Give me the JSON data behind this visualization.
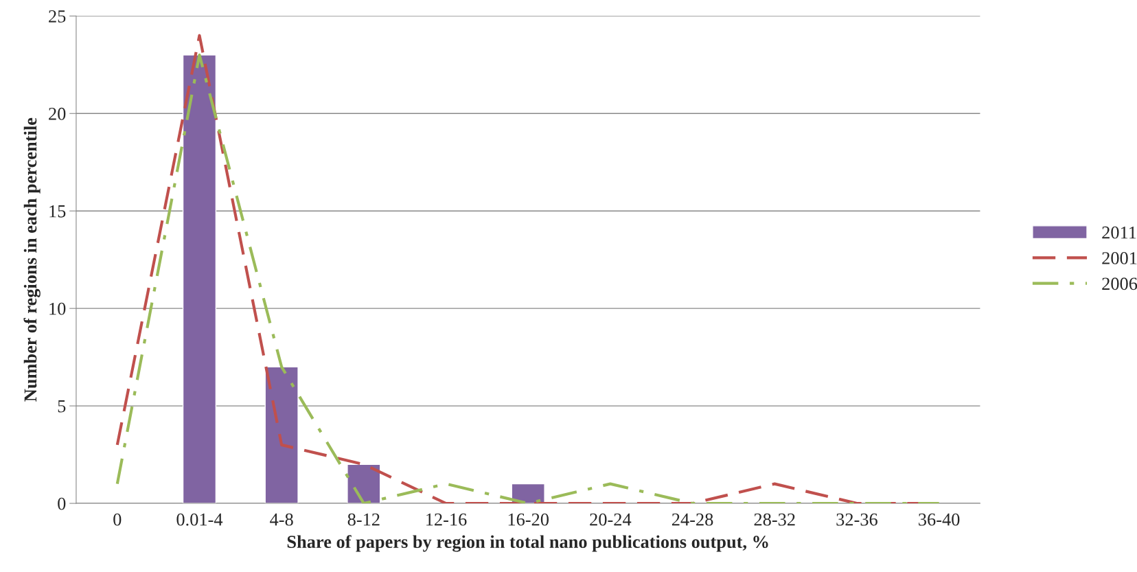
{
  "chart_data": {
    "type": "bar",
    "xlabel": "Share of papers by region in total nano publications output, %",
    "ylabel": "Number of regions in each percentile",
    "categories": [
      "0",
      "0.01-4",
      "4-8",
      "8-12",
      "12-16",
      "16-20",
      "20-24",
      "24-28",
      "28-32",
      "32-36",
      "36-40"
    ],
    "series": [
      {
        "name": "2011",
        "color": "#8064a2",
        "values": [
          0,
          23,
          7,
          2,
          0,
          1,
          0,
          0,
          0,
          0,
          0
        ]
      },
      {
        "name": "2001",
        "type": "line",
        "line_style": "dashed",
        "color": "#c0504d",
        "values": [
          3,
          24,
          3,
          2,
          0,
          0,
          0,
          0,
          1,
          0,
          0
        ]
      },
      {
        "name": "2006",
        "type": "line",
        "line_style": "dashdot",
        "color": "#9bbb59",
        "values": [
          1,
          23,
          7,
          0,
          1,
          0,
          1,
          0,
          0,
          0,
          0
        ]
      }
    ],
    "ylim": [
      0,
      25
    ],
    "yticks": [
      0,
      5,
      10,
      15,
      20,
      25
    ],
    "grid": "y",
    "legend": "right",
    "marker": "none"
  }
}
